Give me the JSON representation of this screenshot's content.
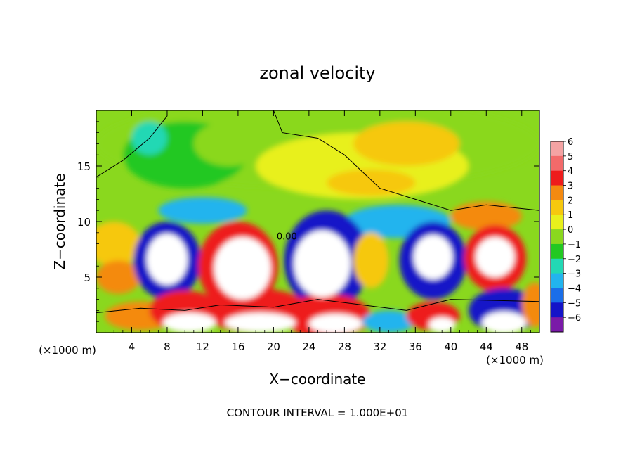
{
  "chart_data": {
    "type": "heatmap",
    "title": "zonal velocity",
    "xlabel": "X−coordinate",
    "ylabel": "Z−coordinate",
    "x_unit_label": "(×1000 m)",
    "y_unit_label": "(×1000 m)",
    "footer": "CONTOUR INTERVAL = 1.000E+01",
    "xlim": [
      0,
      50
    ],
    "ylim": [
      0,
      20
    ],
    "x_ticks": [
      {
        "value": 4,
        "label": "4"
      },
      {
        "value": 8,
        "label": "8"
      },
      {
        "value": 12,
        "label": "12"
      },
      {
        "value": 16,
        "label": "16"
      },
      {
        "value": 20,
        "label": "20"
      },
      {
        "value": 24,
        "label": "24"
      },
      {
        "value": 28,
        "label": "28"
      },
      {
        "value": 32,
        "label": "32"
      },
      {
        "value": 36,
        "label": "36"
      },
      {
        "value": 40,
        "label": "40"
      },
      {
        "value": 44,
        "label": "44"
      },
      {
        "value": 48,
        "label": "48"
      }
    ],
    "y_ticks": [
      {
        "value": 5,
        "label": "5"
      },
      {
        "value": 10,
        "label": "10"
      },
      {
        "value": 15,
        "label": "15"
      }
    ],
    "contour_labels": [
      {
        "x": 21.5,
        "y": 8.4,
        "text": "0.00"
      }
    ],
    "colorbar": {
      "min": -6,
      "max": 6,
      "levels": [
        {
          "label": "6",
          "color": "#f4a3a3"
        },
        {
          "label": "5",
          "color": "#f26a6a"
        },
        {
          "label": "4",
          "color": "#ee1c1c"
        },
        {
          "label": "3",
          "color": "#f48a10"
        },
        {
          "label": "2",
          "color": "#f6c80e"
        },
        {
          "label": "1",
          "color": "#e8f01c"
        },
        {
          "label": "0",
          "color": "#8ad81e"
        },
        {
          "label": "−1",
          "color": "#22c822"
        },
        {
          "label": "−2",
          "color": "#22d8b4"
        },
        {
          "label": "−3",
          "color": "#22b4ee"
        },
        {
          "label": "−4",
          "color": "#1a6ee8"
        },
        {
          "label": "−5",
          "color": "#1414c8"
        },
        {
          "label": "−6",
          "color": "#7a1aa8"
        }
      ]
    }
  }
}
